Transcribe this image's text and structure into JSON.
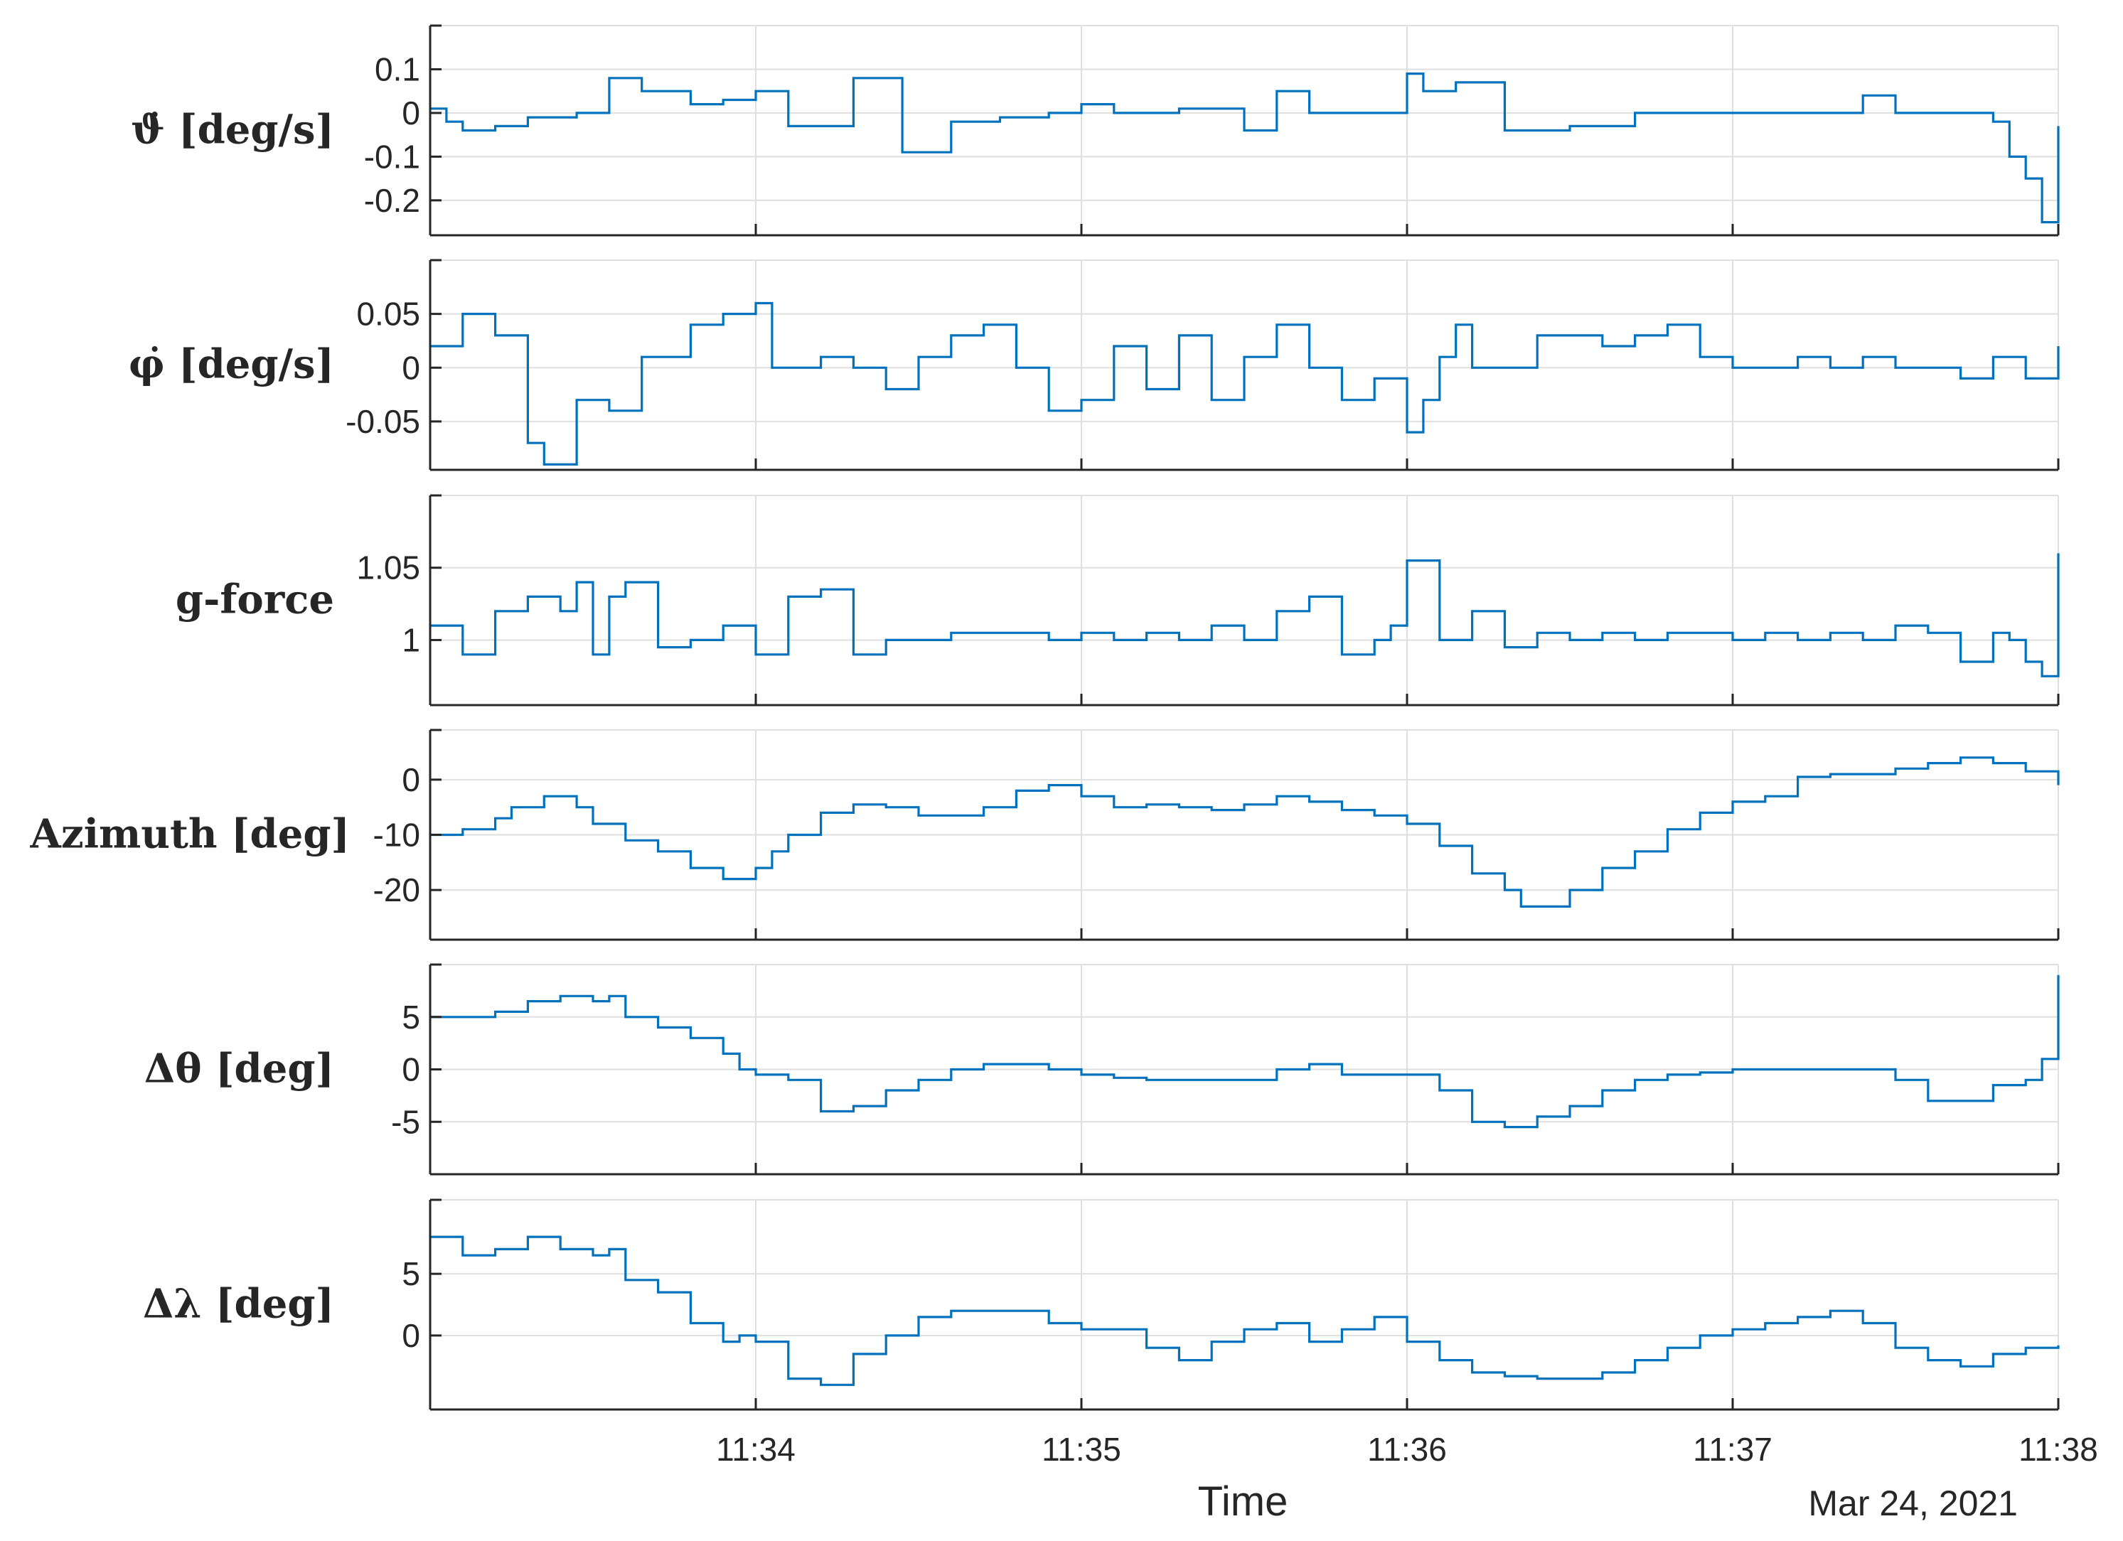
{
  "chart_data": {
    "type": "line",
    "xlabel": "Time",
    "date_label": "Mar 24, 2021",
    "x_range": [
      "11:33:00",
      "11:38:00"
    ],
    "x_ticks": [
      "11:34",
      "11:35",
      "11:36",
      "11:37",
      "11:38"
    ],
    "x_tick_minutes": [
      1,
      2,
      3,
      4,
      5
    ],
    "line_color": "#0072BD",
    "grid": true,
    "panels": [
      {
        "name": "pitch-rate",
        "ylabel": "ϑ̇ [deg/s]",
        "ylim": [
          -0.28,
          0.2
        ],
        "y_ticks": [
          0.1,
          0,
          -0.1,
          -0.2
        ],
        "y_tick_labels": [
          "0.1",
          "0",
          "-0.1",
          "-0.2"
        ],
        "x": [
          0,
          0.05,
          0.1,
          0.2,
          0.3,
          0.45,
          0.55,
          0.65,
          0.8,
          0.9,
          1.0,
          1.1,
          1.3,
          1.45,
          1.6,
          1.75,
          1.9,
          2.0,
          2.1,
          2.3,
          2.5,
          2.6,
          2.7,
          2.9,
          3.0,
          3.05,
          3.15,
          3.3,
          3.5,
          3.7,
          3.9,
          4.1,
          4.3,
          4.4,
          4.5,
          4.6,
          4.7,
          4.8,
          4.85,
          4.9,
          4.95,
          5.0
        ],
        "y": [
          0.01,
          -0.02,
          -0.04,
          -0.03,
          -0.01,
          0.0,
          0.08,
          0.05,
          0.02,
          0.03,
          0.05,
          -0.03,
          0.08,
          -0.09,
          -0.02,
          -0.01,
          0.0,
          0.02,
          0.0,
          0.01,
          -0.04,
          0.05,
          0.0,
          0.0,
          0.09,
          0.05,
          0.07,
          -0.04,
          -0.03,
          0.0,
          0.0,
          0.0,
          0.0,
          0.04,
          0.0,
          0.0,
          0.0,
          -0.02,
          -0.1,
          -0.15,
          -0.25,
          -0.03
        ]
      },
      {
        "name": "roll-rate",
        "ylabel": "φ̇ [deg/s]",
        "ylim": [
          -0.095,
          0.1
        ],
        "y_ticks": [
          0.05,
          0,
          -0.05
        ],
        "y_tick_labels": [
          "0.05",
          "0",
          "-0.05"
        ],
        "x": [
          0,
          0.1,
          0.2,
          0.3,
          0.35,
          0.45,
          0.55,
          0.65,
          0.8,
          0.9,
          1.0,
          1.05,
          1.1,
          1.2,
          1.3,
          1.4,
          1.5,
          1.6,
          1.7,
          1.8,
          1.9,
          2.0,
          2.1,
          2.2,
          2.3,
          2.4,
          2.5,
          2.6,
          2.7,
          2.8,
          2.9,
          3.0,
          3.05,
          3.1,
          3.15,
          3.2,
          3.3,
          3.4,
          3.5,
          3.6,
          3.7,
          3.8,
          3.9,
          4.0,
          4.1,
          4.2,
          4.3,
          4.4,
          4.5,
          4.6,
          4.7,
          4.8,
          4.9,
          5.0
        ],
        "y": [
          0.02,
          0.05,
          0.03,
          -0.07,
          -0.09,
          -0.03,
          -0.04,
          0.01,
          0.04,
          0.05,
          0.06,
          0.0,
          0.0,
          0.01,
          0.0,
          -0.02,
          0.01,
          0.03,
          0.04,
          0.0,
          -0.04,
          -0.03,
          0.02,
          -0.02,
          0.03,
          -0.03,
          0.01,
          0.04,
          0.0,
          -0.03,
          -0.01,
          -0.06,
          -0.03,
          0.01,
          0.04,
          0.0,
          0.0,
          0.03,
          0.03,
          0.02,
          0.03,
          0.04,
          0.01,
          0.0,
          0.0,
          0.01,
          0.0,
          0.01,
          0.0,
          0.0,
          -0.01,
          0.01,
          -0.01,
          0.02
        ]
      },
      {
        "name": "g-force",
        "ylabel": "g-force",
        "ylim": [
          0.955,
          1.1
        ],
        "y_ticks": [
          1.05,
          1
        ],
        "y_tick_labels": [
          "1.05",
          "1"
        ],
        "x": [
          0,
          0.1,
          0.2,
          0.3,
          0.4,
          0.45,
          0.5,
          0.55,
          0.6,
          0.7,
          0.8,
          0.9,
          1.0,
          1.1,
          1.2,
          1.3,
          1.4,
          1.5,
          1.6,
          1.7,
          1.8,
          1.9,
          2.0,
          2.1,
          2.2,
          2.3,
          2.4,
          2.5,
          2.6,
          2.7,
          2.8,
          2.9,
          2.95,
          3.0,
          3.1,
          3.2,
          3.3,
          3.4,
          3.5,
          3.6,
          3.7,
          3.8,
          3.9,
          4.0,
          4.1,
          4.2,
          4.3,
          4.4,
          4.5,
          4.6,
          4.7,
          4.8,
          4.85,
          4.9,
          4.95,
          5.0
        ],
        "y": [
          1.01,
          0.99,
          1.02,
          1.03,
          1.02,
          1.04,
          0.99,
          1.03,
          1.04,
          0.995,
          1.0,
          1.01,
          0.99,
          1.03,
          1.035,
          0.99,
          1.0,
          1.0,
          1.005,
          1.005,
          1.005,
          1.0,
          1.005,
          1.0,
          1.005,
          1.0,
          1.01,
          1.0,
          1.02,
          1.03,
          0.99,
          1.0,
          1.01,
          1.055,
          1.0,
          1.02,
          0.995,
          1.005,
          1.0,
          1.005,
          1.0,
          1.005,
          1.005,
          1.0,
          1.005,
          1.0,
          1.005,
          1.0,
          1.01,
          1.005,
          0.985,
          1.005,
          1.0,
          0.985,
          0.975,
          1.06
        ]
      },
      {
        "name": "azimuth",
        "ylabel": "Azimuth [deg]",
        "ylim": [
          -29,
          9
        ],
        "y_ticks": [
          0,
          -10,
          -20
        ],
        "y_tick_labels": [
          "0",
          "-10",
          "-20"
        ],
        "x": [
          0,
          0.1,
          0.2,
          0.25,
          0.35,
          0.45,
          0.5,
          0.6,
          0.7,
          0.8,
          0.9,
          1.0,
          1.05,
          1.1,
          1.2,
          1.3,
          1.4,
          1.5,
          1.6,
          1.7,
          1.8,
          1.9,
          2.0,
          2.1,
          2.2,
          2.3,
          2.4,
          2.5,
          2.6,
          2.7,
          2.8,
          2.9,
          3.0,
          3.1,
          3.2,
          3.3,
          3.35,
          3.4,
          3.5,
          3.6,
          3.7,
          3.8,
          3.9,
          4.0,
          4.1,
          4.2,
          4.3,
          4.4,
          4.5,
          4.6,
          4.7,
          4.8,
          4.9,
          5.0
        ],
        "y": [
          -10,
          -9,
          -7,
          -5,
          -3,
          -5,
          -8,
          -11,
          -13,
          -16,
          -18,
          -16,
          -13,
          -10,
          -6,
          -4.5,
          -5,
          -6.5,
          -6.5,
          -5,
          -2,
          -1,
          -3,
          -5,
          -4.5,
          -5,
          -5.5,
          -4.5,
          -3,
          -4,
          -5.5,
          -6.5,
          -8,
          -12,
          -17,
          -20,
          -23,
          -23,
          -20,
          -16,
          -13,
          -9,
          -6,
          -4,
          -3,
          0.5,
          1,
          1,
          2,
          3,
          4,
          3,
          1.5,
          -1
        ]
      },
      {
        "name": "delta-theta",
        "ylabel": "Δθ [deg]",
        "ylim": [
          -10,
          10
        ],
        "y_ticks": [
          5,
          0,
          -5
        ],
        "y_tick_labels": [
          "5",
          "0",
          "-5"
        ],
        "x": [
          0,
          0.1,
          0.2,
          0.3,
          0.4,
          0.5,
          0.55,
          0.6,
          0.7,
          0.8,
          0.9,
          0.95,
          1.0,
          1.1,
          1.2,
          1.3,
          1.4,
          1.5,
          1.6,
          1.7,
          1.8,
          1.9,
          2.0,
          2.1,
          2.2,
          2.3,
          2.4,
          2.5,
          2.6,
          2.7,
          2.8,
          2.9,
          3.0,
          3.1,
          3.2,
          3.3,
          3.4,
          3.5,
          3.6,
          3.7,
          3.8,
          3.9,
          4.0,
          4.1,
          4.2,
          4.3,
          4.4,
          4.5,
          4.6,
          4.7,
          4.8,
          4.9,
          4.95,
          5.0
        ],
        "y": [
          5,
          5,
          5.5,
          6.5,
          7,
          6.5,
          7,
          5,
          4,
          3,
          1.5,
          0,
          -0.5,
          -1,
          -4,
          -3.5,
          -2,
          -1,
          0,
          0.5,
          0.5,
          0,
          -0.5,
          -0.8,
          -1,
          -1,
          -1,
          -1,
          0,
          0.5,
          -0.5,
          -0.5,
          -0.5,
          -2,
          -5,
          -5.5,
          -4.5,
          -3.5,
          -2,
          -1,
          -0.5,
          -0.3,
          0,
          0,
          0,
          0,
          0,
          -1,
          -3,
          -3,
          -1.5,
          -1,
          1,
          9
        ]
      },
      {
        "name": "delta-lambda",
        "ylabel": "Δλ [deg]",
        "ylim": [
          -6,
          11
        ],
        "y_ticks": [
          5,
          0
        ],
        "y_tick_labels": [
          "5",
          "0"
        ],
        "x": [
          0,
          0.1,
          0.2,
          0.3,
          0.4,
          0.5,
          0.55,
          0.6,
          0.7,
          0.8,
          0.9,
          0.95,
          1.0,
          1.1,
          1.2,
          1.3,
          1.4,
          1.5,
          1.6,
          1.7,
          1.8,
          1.9,
          2.0,
          2.1,
          2.2,
          2.3,
          2.4,
          2.5,
          2.6,
          2.7,
          2.8,
          2.9,
          3.0,
          3.1,
          3.2,
          3.3,
          3.4,
          3.5,
          3.6,
          3.7,
          3.8,
          3.9,
          4.0,
          4.1,
          4.2,
          4.3,
          4.4,
          4.5,
          4.6,
          4.7,
          4.8,
          4.9,
          5.0
        ],
        "y": [
          8,
          6.5,
          7,
          8,
          7,
          6.5,
          7,
          4.5,
          3.5,
          1,
          -0.5,
          0,
          -0.5,
          -3.5,
          -4,
          -1.5,
          0,
          1.5,
          2,
          2,
          2,
          1,
          0.5,
          0.5,
          -1,
          -2,
          -0.5,
          0.5,
          1,
          -0.5,
          0.5,
          1.5,
          -0.5,
          -2,
          -3,
          -3.3,
          -3.5,
          -3.5,
          -3,
          -2,
          -1,
          0,
          0.5,
          1,
          1.5,
          2,
          1,
          -1,
          -2,
          -2.5,
          -1.5,
          -1,
          -0.8
        ]
      }
    ]
  }
}
